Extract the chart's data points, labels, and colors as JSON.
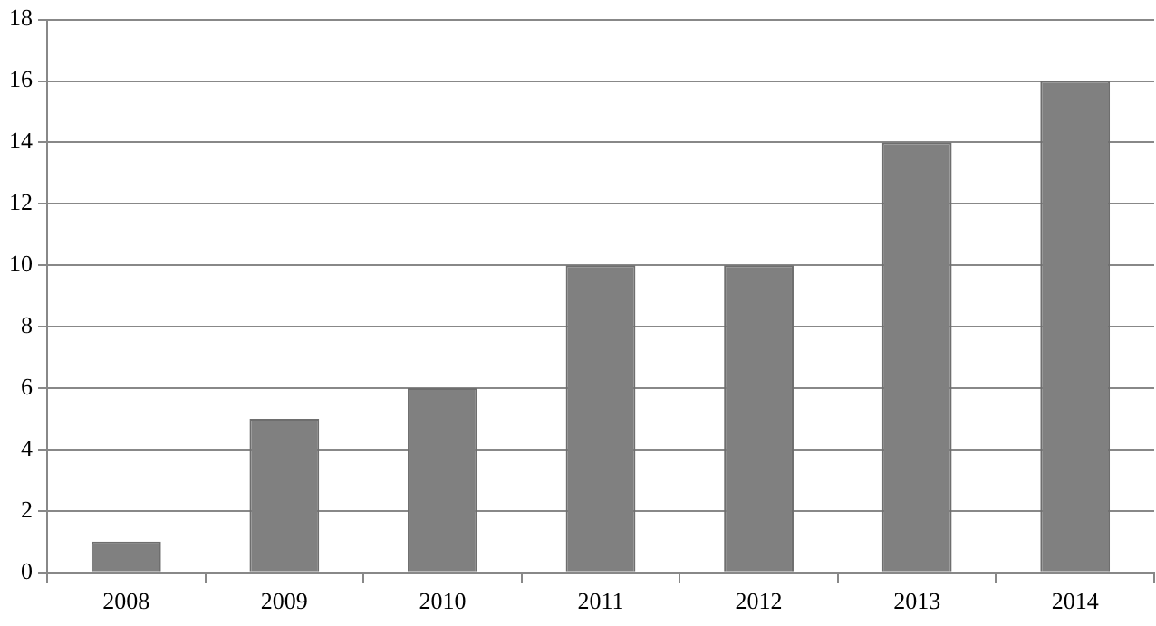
{
  "chart_data": {
    "type": "bar",
    "categories": [
      "2008",
      "2009",
      "2010",
      "2011",
      "2012",
      "2013",
      "2014"
    ],
    "values": [
      1,
      5,
      6,
      10,
      10,
      14,
      16
    ],
    "color": "#808080",
    "ylim": [
      0,
      18
    ],
    "yticks": [
      0,
      2,
      4,
      6,
      8,
      10,
      12,
      14,
      16,
      18
    ],
    "grid": "y",
    "legend": false
  }
}
